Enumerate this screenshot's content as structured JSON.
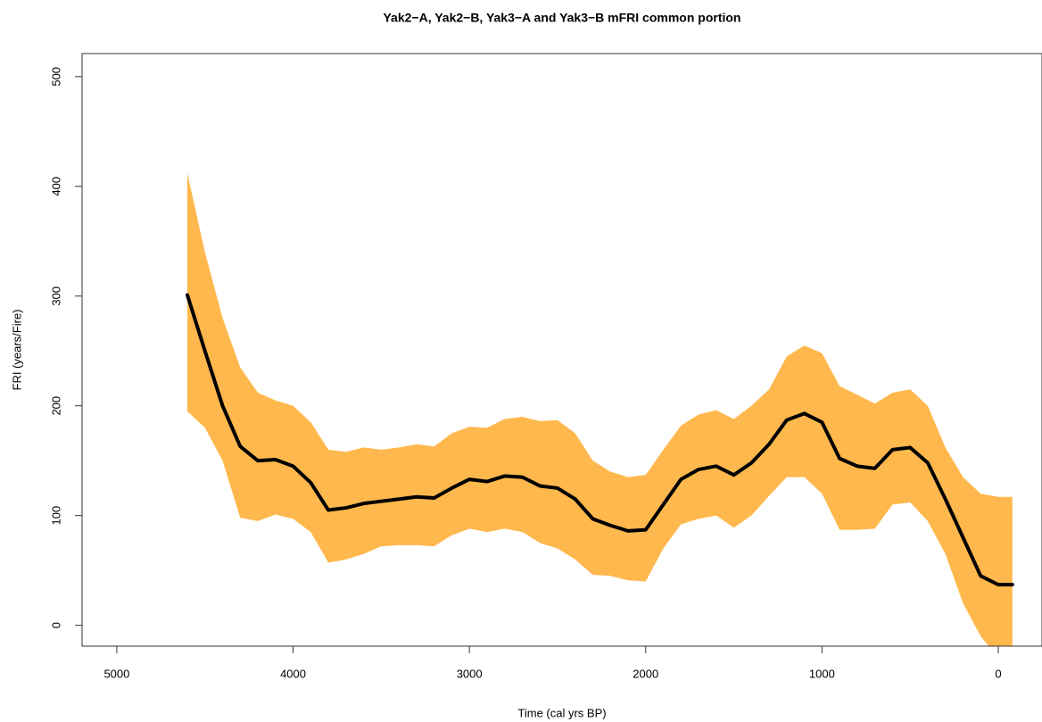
{
  "chart_data": {
    "type": "line",
    "title": "Yak2−A, Yak2−B, Yak3−A and Yak3−B mFRI common portion",
    "x_label": "Time (cal yrs BP)",
    "y_label": "FRI (years/Fire)",
    "x": [
      4600,
      4500,
      4400,
      4300,
      4200,
      4100,
      4000,
      3900,
      3800,
      3700,
      3600,
      3500,
      3400,
      3300,
      3200,
      3100,
      3000,
      2900,
      2800,
      2700,
      2600,
      2500,
      2400,
      2300,
      2200,
      2100,
      2000,
      1900,
      1800,
      1700,
      1600,
      1500,
      1400,
      1300,
      1200,
      1100,
      1000,
      900,
      800,
      700,
      600,
      500,
      400,
      300,
      200,
      100,
      0,
      -80
    ],
    "values": [
      301,
      250,
      200,
      163,
      150,
      151,
      145,
      130,
      105,
      107,
      111,
      113,
      115,
      117,
      116,
      125,
      133,
      131,
      136,
      135,
      127,
      125,
      115,
      97,
      91,
      86,
      87,
      110,
      133,
      142,
      145,
      137,
      148,
      165,
      187,
      193,
      185,
      152,
      145,
      143,
      160,
      162,
      148,
      115,
      80,
      45,
      37,
      37
    ],
    "upper": [
      412,
      340,
      280,
      235,
      212,
      205,
      200,
      185,
      160,
      158,
      162,
      160,
      162,
      165,
      163,
      175,
      181,
      180,
      188,
      190,
      186,
      187,
      175,
      150,
      140,
      135,
      137,
      160,
      182,
      192,
      196,
      188,
      200,
      215,
      245,
      255,
      248,
      218,
      210,
      202,
      212,
      215,
      200,
      162,
      135,
      120,
      117,
      117
    ],
    "lower": [
      195,
      180,
      150,
      98,
      95,
      101,
      97,
      85,
      57,
      60,
      65,
      72,
      73,
      73,
      72,
      82,
      88,
      85,
      88,
      85,
      75,
      70,
      60,
      46,
      45,
      41,
      40,
      70,
      92,
      97,
      100,
      89,
      100,
      118,
      135,
      135,
      120,
      87,
      87,
      88,
      110,
      112,
      95,
      65,
      20,
      -10,
      -30,
      -30
    ],
    "color": "#000000",
    "band_color": "#ffb84d",
    "xlim": [
      5197,
      -248
    ],
    "ylim": [
      -19,
      521
    ],
    "xticks": [
      5000,
      4000,
      3000,
      2000,
      1000,
      0
    ],
    "yticks": [
      0,
      100,
      200,
      300,
      400,
      500
    ]
  }
}
